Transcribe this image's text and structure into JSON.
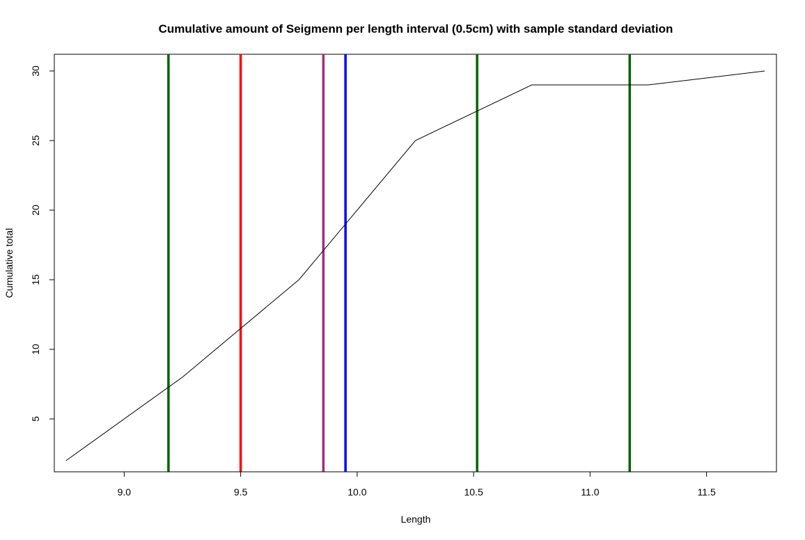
{
  "chart_data": {
    "type": "line",
    "title": "Cumulative amount of Seigmenn per length interval (0.5cm) with sample standard deviation",
    "xlabel": "Length",
    "ylabel": "Cumulative total",
    "xlim": [
      8.7,
      11.8
    ],
    "ylim": [
      1.2,
      31.2
    ],
    "x_ticks": [
      9.0,
      9.5,
      10.0,
      10.5,
      11.0,
      11.5
    ],
    "x_tick_labels": [
      "9.0",
      "9.5",
      "10.0",
      "10.5",
      "11.0",
      "11.5"
    ],
    "y_ticks": [
      5,
      10,
      15,
      20,
      25,
      30
    ],
    "y_tick_labels": [
      "5",
      "10",
      "15",
      "20",
      "25",
      "30"
    ],
    "grid": false,
    "legend": "none",
    "series": [
      {
        "x": [
          8.75,
          9.25,
          9.75,
          10.25,
          10.75,
          11.25,
          11.75
        ],
        "y": [
          2,
          8,
          15,
          25,
          29,
          29,
          30
        ],
        "color": "#000000"
      }
    ],
    "vertical_lines": [
      {
        "x": 9.19,
        "color": "#006400"
      },
      {
        "x": 9.5,
        "color": "#ff0000"
      },
      {
        "x": 9.855,
        "color": "#a0307a"
      },
      {
        "x": 9.95,
        "color": "#0000ff"
      },
      {
        "x": 10.515,
        "color": "#006400"
      },
      {
        "x": 11.17,
        "color": "#006400"
      }
    ]
  }
}
